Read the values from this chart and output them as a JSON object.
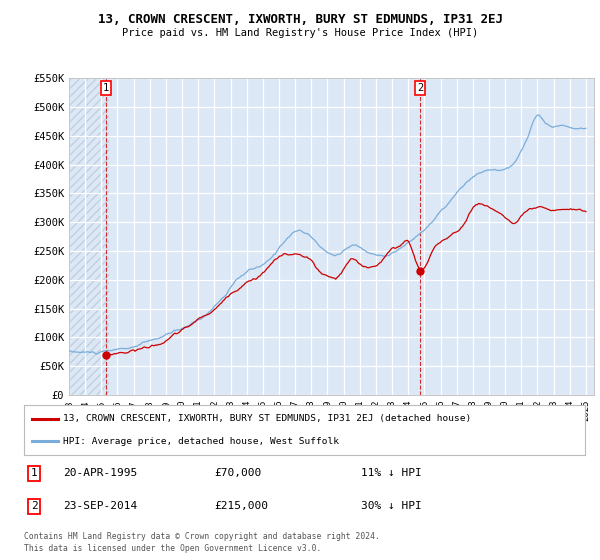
{
  "title": "13, CROWN CRESCENT, IXWORTH, BURY ST EDMUNDS, IP31 2EJ",
  "subtitle": "Price paid vs. HM Land Registry's House Price Index (HPI)",
  "ylim": [
    0,
    550000
  ],
  "yticks": [
    0,
    50000,
    100000,
    150000,
    200000,
    250000,
    300000,
    350000,
    400000,
    450000,
    500000,
    550000
  ],
  "ytick_labels": [
    "£0",
    "£50K",
    "£100K",
    "£150K",
    "£200K",
    "£250K",
    "£300K",
    "£350K",
    "£400K",
    "£450K",
    "£500K",
    "£550K"
  ],
  "sale1_year": 1995.3,
  "sale1_price": 70000,
  "sale2_year": 2014.73,
  "sale2_price": 215000,
  "legend_line1": "13, CROWN CRESCENT, IXWORTH, BURY ST EDMUNDS, IP31 2EJ (detached house)",
  "legend_line2": "HPI: Average price, detached house, West Suffolk",
  "annotation1": "1",
  "annotation2": "2",
  "note1_date": "20-APR-1995",
  "note1_price": "£70,000",
  "note1_hpi": "11% ↓ HPI",
  "note2_date": "23-SEP-2014",
  "note2_price": "£215,000",
  "note2_hpi": "30% ↓ HPI",
  "footer": "Contains HM Land Registry data © Crown copyright and database right 2024.\nThis data is licensed under the Open Government Licence v3.0.",
  "bg_color": "#dce8f5",
  "hatch_color": "#c0d0e0",
  "red_line_color": "#cc0000",
  "blue_line_color": "#7aaddb",
  "xlim": [
    1993,
    2025.5
  ]
}
